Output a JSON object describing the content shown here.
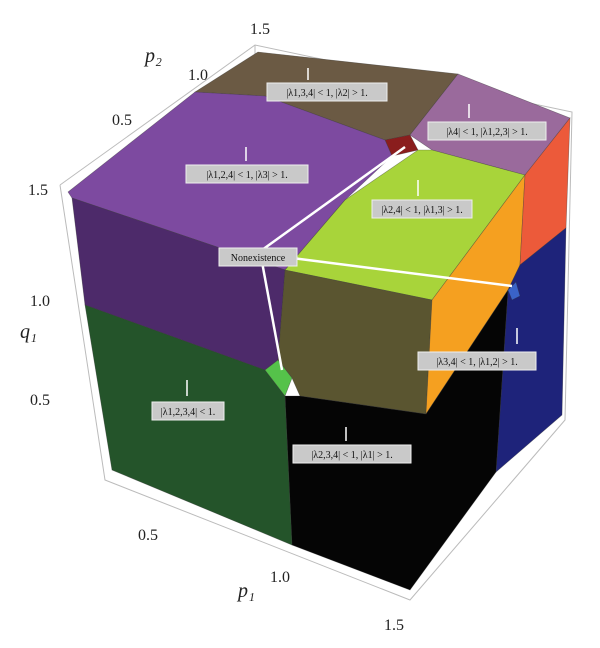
{
  "axes": {
    "p2": {
      "label": "p₂",
      "ticks": [
        "0.5",
        "1.0",
        "1.5"
      ]
    },
    "q1": {
      "label": "q₁",
      "ticks": [
        "1.5",
        "1.0",
        "0.5"
      ]
    },
    "p1": {
      "label": "p₁",
      "ticks": [
        "0.5",
        "1.0",
        "1.5"
      ]
    }
  },
  "regions": [
    {
      "label": "|λ1,3,4| < 1, |λ2| > 1."
    },
    {
      "label": "|λ4| < 1, |λ1,2,3| > 1."
    },
    {
      "label": "|λ1,2,4| < 1, |λ3| > 1."
    },
    {
      "label": "|λ2,4| < 1, |λ1,3| > 1."
    },
    {
      "label": "|λ3,4| < 1, |λ1,2| > 1."
    },
    {
      "label": "|λ1,2,3,4| < 1."
    },
    {
      "label": "|λ2,3,4| < 1, |λ1| > 1."
    }
  ],
  "nonexistence": {
    "label": "Nonexistence"
  }
}
